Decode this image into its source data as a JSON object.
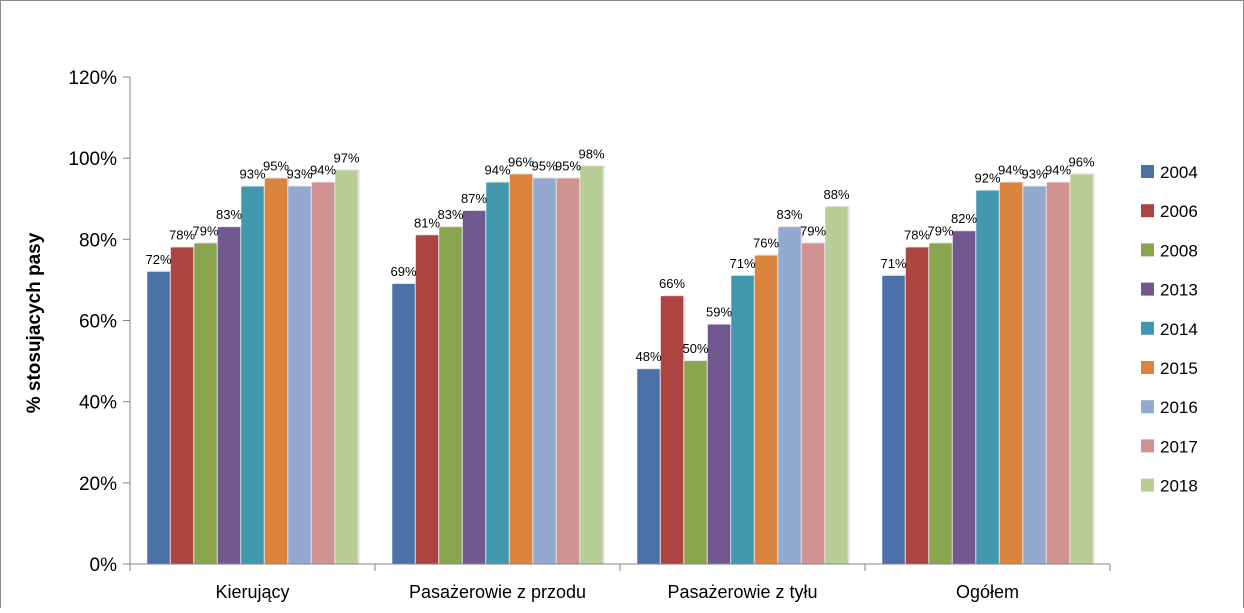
{
  "chart_data": {
    "type": "bar",
    "title": "",
    "xlabel": "",
    "ylabel": "% stosujacych pasy",
    "ylim": [
      0,
      120
    ],
    "y_ticks": [
      "0%",
      "20%",
      "40%",
      "60%",
      "80%",
      "100%",
      "120%"
    ],
    "y_tick_values": [
      0,
      20,
      40,
      60,
      80,
      100,
      120
    ],
    "categories": [
      "Kierujący",
      "Pasażerowie z przodu",
      "Pasażerowie z tyłu",
      "Ogółem"
    ],
    "grid": false,
    "legend_position": "right",
    "data_labels": true,
    "series": [
      {
        "name": "2004",
        "color": "#4a72a9",
        "values": [
          72,
          69,
          48,
          71
        ],
        "labels": [
          "72%",
          "69%",
          "48%",
          "71%"
        ]
      },
      {
        "name": "2006",
        "color": "#ac4442",
        "values": [
          78,
          81,
          66,
          78
        ],
        "labels": [
          "78%",
          "81%",
          "66%",
          "78%"
        ]
      },
      {
        "name": "2008",
        "color": "#89a54e",
        "values": [
          79,
          83,
          50,
          79
        ],
        "labels": [
          "79%",
          "83%",
          "50%",
          "79%"
        ]
      },
      {
        "name": "2013",
        "color": "#71598f",
        "values": [
          83,
          87,
          59,
          82
        ],
        "labels": [
          "83%",
          "87%",
          "59%",
          "82%"
        ]
      },
      {
        "name": "2014",
        "color": "#4198af",
        "values": [
          93,
          94,
          71,
          92
        ],
        "labels": [
          "93%",
          "94%",
          "71%",
          "92%"
        ]
      },
      {
        "name": "2015",
        "color": "#db843d",
        "values": [
          95,
          96,
          76,
          94
        ],
        "labels": [
          "95%",
          "96%",
          "76%",
          "94%"
        ]
      },
      {
        "name": "2016",
        "color": "#93a9cf",
        "values": [
          93,
          95,
          83,
          93
        ],
        "labels": [
          "93%",
          "95%",
          "83%",
          "93%"
        ]
      },
      {
        "name": "2017",
        "color": "#d19392",
        "values": [
          94,
          95,
          79,
          94
        ],
        "labels": [
          "94%",
          "95%",
          "79%",
          "94%"
        ]
      },
      {
        "name": "2018",
        "color": "#b9cd96",
        "values": [
          97,
          98,
          88,
          96
        ],
        "labels": [
          "97%",
          "98%",
          "88%",
          "96%"
        ]
      }
    ]
  }
}
